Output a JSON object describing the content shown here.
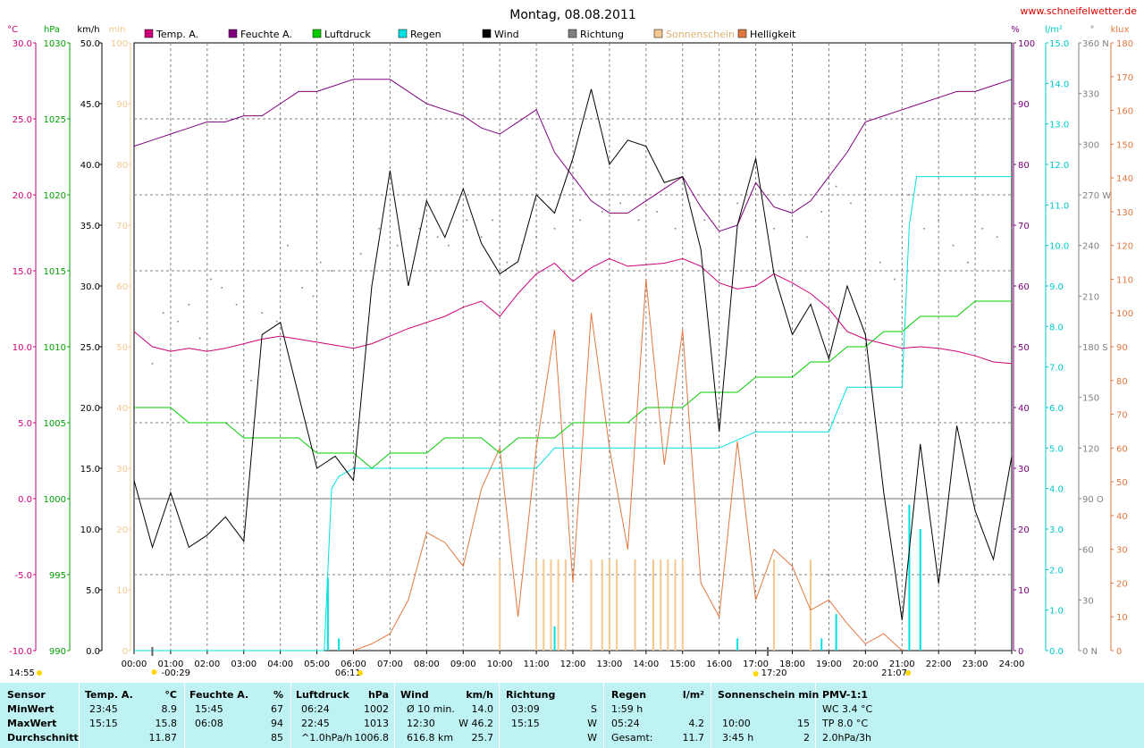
{
  "title": "Montag, 08.08.2011",
  "site": "www.schneifelwetter.de",
  "legend": [
    {
      "label": "Temp. A.",
      "color": "#cc0077"
    },
    {
      "label": "Feuchte A.",
      "color": "#800080"
    },
    {
      "label": "Luftdruck",
      "color": "#00cc00"
    },
    {
      "label": "Regen",
      "color": "#00e0e0"
    },
    {
      "label": "Wind",
      "color": "#000000"
    },
    {
      "label": "Richtung",
      "color": "#808080"
    },
    {
      "label": "Sonnenschein",
      "color": "#f5c890"
    },
    {
      "label": "Helligkeit",
      "color": "#e07840"
    }
  ],
  "axes": {
    "temp": {
      "unit": "°C",
      "color": "#cc0077",
      "ticks": [
        "30.0",
        "25.0",
        "20.0",
        "15.0",
        "10.0",
        "5.0",
        "0.0",
        "-5.0",
        "-10.0"
      ]
    },
    "pressure": {
      "unit": "hPa",
      "color": "#00a000",
      "ticks": [
        "1030",
        "1025",
        "1020",
        "1015",
        "1010",
        "1005",
        "1000",
        "995",
        "990"
      ]
    },
    "wind": {
      "unit": "km/h",
      "color": "#000000",
      "ticks": [
        "50.0",
        "45.0",
        "40.0",
        "35.0",
        "30.0",
        "25.0",
        "20.0",
        "15.0",
        "10.0",
        "5.0",
        "0.0"
      ]
    },
    "sun": {
      "unit": "min",
      "color": "#f5c890",
      "ticks": [
        "100",
        "90",
        "80",
        "70",
        "60",
        "50",
        "40",
        "30",
        "20",
        "10",
        "0"
      ]
    },
    "humidity": {
      "unit": "%",
      "color": "#800080",
      "ticks": [
        "100",
        "90",
        "80",
        "70",
        "60",
        "50",
        "40",
        "30",
        "20",
        "10",
        "0"
      ]
    },
    "rain": {
      "unit": "l/m²",
      "color": "#00c8c8",
      "ticks": [
        "15.0",
        "14.0",
        "13.0",
        "12.0",
        "11.0",
        "10.0",
        "9.0",
        "8.0",
        "7.0",
        "6.0",
        "5.0",
        "4.0",
        "3.0",
        "2.0",
        "1.0",
        "0.0"
      ]
    },
    "direction": {
      "unit": "°",
      "color": "#808080",
      "ticks": [
        "360 N",
        "330",
        "300",
        "270 W",
        "240",
        "210",
        "180 S",
        "150",
        "120",
        "90  O",
        "60",
        "30",
        "0    N"
      ]
    },
    "brightness": {
      "unit": "klux",
      "color": "#e07840",
      "ticks": [
        "180",
        "170",
        "160",
        "150",
        "140",
        "130",
        "120",
        "110",
        "100",
        "90",
        "80",
        "70",
        "60",
        "50",
        "40",
        "30",
        "20",
        "10",
        "0"
      ]
    }
  },
  "x_ticks": [
    "00:00",
    "01:00",
    "02:00",
    "03:00",
    "04:00",
    "05:00",
    "06:00",
    "07:00",
    "08:00",
    "09:00",
    "10:00",
    "11:00",
    "12:00",
    "13:00",
    "14:00",
    "15:00",
    "16:00",
    "17:00",
    "18:00",
    "19:00",
    "20:00",
    "21:00",
    "22:00",
    "23:00",
    "24:00"
  ],
  "sun_marks": {
    "left": "14:55",
    "rise": "06:11",
    "set": "21:07",
    "moonrise": "-00:29",
    "moonset": "17:20"
  },
  "chart_data": {
    "type": "line",
    "x_unit": "hours",
    "series": [
      {
        "name": "Temp. A.",
        "axis": "temp",
        "x": [
          0,
          0.5,
          1,
          1.5,
          2,
          2.5,
          3,
          3.5,
          4,
          4.5,
          5,
          5.5,
          6,
          6.5,
          7,
          7.5,
          8,
          8.5,
          9,
          9.5,
          10,
          10.5,
          11,
          11.5,
          12,
          12.5,
          13,
          13.5,
          14,
          14.5,
          15,
          15.5,
          16,
          16.5,
          17,
          17.5,
          18,
          18.5,
          19,
          19.5,
          20,
          20.5,
          21,
          21.5,
          22,
          22.5,
          23,
          23.5,
          24
        ],
        "values": [
          11.0,
          10.0,
          9.7,
          9.9,
          9.7,
          9.9,
          10.2,
          10.5,
          10.7,
          10.5,
          10.3,
          10.1,
          9.9,
          10.2,
          10.7,
          11.2,
          11.6,
          12.0,
          12.6,
          13.0,
          12.0,
          13.5,
          14.8,
          15.5,
          14.3,
          15.2,
          15.8,
          15.3,
          15.4,
          15.5,
          15.8,
          15.3,
          14.2,
          13.8,
          14.0,
          14.8,
          14.2,
          13.5,
          12.5,
          11.0,
          10.5,
          10.2,
          9.9,
          10.0,
          9.9,
          9.7,
          9.4,
          9.0,
          8.9
        ]
      },
      {
        "name": "Feuchte A.",
        "axis": "humidity",
        "x": [
          0,
          0.5,
          1,
          1.5,
          2,
          2.5,
          3,
          3.5,
          4,
          4.5,
          5,
          5.5,
          6,
          6.5,
          7,
          7.5,
          8,
          8.5,
          9,
          9.5,
          10,
          10.5,
          11,
          11.5,
          12,
          12.5,
          13,
          13.5,
          14,
          14.5,
          15,
          15.5,
          16,
          16.5,
          17,
          17.5,
          18,
          18.5,
          19,
          19.5,
          20,
          20.5,
          21,
          21.5,
          22,
          22.5,
          23,
          23.5,
          24
        ],
        "values": [
          83,
          84,
          85,
          86,
          87,
          87,
          88,
          88,
          90,
          92,
          92,
          93,
          94,
          94,
          94,
          92,
          90,
          89,
          88,
          86,
          85,
          87,
          89,
          82,
          78,
          74,
          72,
          72,
          74,
          76,
          78,
          73,
          69,
          70,
          77,
          73,
          72,
          74,
          78,
          82,
          87,
          88,
          89,
          90,
          91,
          92,
          92,
          93,
          94
        ]
      },
      {
        "name": "Luftdruck",
        "axis": "pressure",
        "x": [
          0,
          0.5,
          1,
          1.5,
          2,
          2.5,
          3,
          3.5,
          4,
          4.5,
          5,
          5.5,
          6,
          6.5,
          7,
          7.5,
          8,
          8.5,
          9,
          9.5,
          10,
          10.5,
          11,
          11.5,
          12,
          12.5,
          13,
          13.5,
          14,
          14.5,
          15,
          15.5,
          16,
          16.5,
          17,
          17.5,
          18,
          18.5,
          19,
          19.5,
          20,
          20.5,
          21,
          21.5,
          22,
          22.5,
          23,
          23.5,
          24
        ],
        "values": [
          1006,
          1006,
          1006,
          1005,
          1005,
          1005,
          1004,
          1004,
          1004,
          1004,
          1003,
          1003,
          1003,
          1002,
          1003,
          1003,
          1003,
          1004,
          1004,
          1004,
          1003,
          1004,
          1004,
          1004,
          1005,
          1005,
          1005,
          1005,
          1006,
          1006,
          1006,
          1007,
          1007,
          1007,
          1008,
          1008,
          1008,
          1009,
          1009,
          1010,
          1010,
          1011,
          1011,
          1012,
          1012,
          1012,
          1013,
          1013,
          1013
        ]
      },
      {
        "name": "Wind",
        "axis": "wind",
        "x": [
          0,
          0.5,
          1,
          1.5,
          2,
          2.5,
          3,
          3.5,
          4,
          4.5,
          5,
          5.5,
          6,
          6.5,
          7,
          7.5,
          8,
          8.5,
          9,
          9.5,
          10,
          10.5,
          11,
          11.5,
          12,
          12.5,
          13,
          13.5,
          14,
          14.5,
          15,
          15.5,
          16,
          16.5,
          17,
          17.5,
          18,
          18.5,
          19,
          19.5,
          20,
          20.5,
          21,
          21.5,
          22,
          22.5,
          23,
          23.5,
          24
        ],
        "values": [
          14.0,
          8.5,
          13.0,
          8.5,
          9.5,
          11.0,
          9.0,
          26.0,
          27.0,
          21.0,
          15.0,
          16.0,
          14.0,
          30.0,
          39.5,
          30.0,
          37.0,
          34.0,
          38.0,
          33.5,
          31.0,
          32.0,
          37.5,
          36.0,
          40.5,
          46.2,
          40.0,
          42.0,
          41.5,
          38.5,
          39.0,
          33.0,
          18.0,
          35.0,
          40.5,
          31.0,
          26.0,
          28.5,
          24.0,
          30.0,
          26.0,
          13.0,
          2.5,
          17.0,
          5.5,
          18.5,
          11.5,
          7.5,
          16.0
        ]
      },
      {
        "name": "Regen",
        "axis": "rain",
        "x": [
          0,
          5.2,
          5.4,
          5.6,
          6,
          7,
          8,
          9,
          10,
          10.5,
          11,
          11.5,
          12,
          13,
          14,
          15,
          16,
          17,
          18,
          19,
          19.5,
          20,
          20.5,
          21,
          21.2,
          21.4,
          21.6,
          22,
          23,
          24
        ],
        "values": [
          0,
          0,
          4.0,
          4.3,
          4.5,
          4.5,
          4.5,
          4.5,
          4.5,
          4.5,
          4.5,
          5.0,
          5.0,
          5.0,
          5.0,
          5.0,
          5.0,
          5.4,
          5.4,
          5.4,
          6.5,
          6.5,
          6.5,
          6.5,
          10.5,
          11.7,
          11.7,
          11.7,
          11.7,
          11.7
        ]
      },
      {
        "name": "Helligkeit",
        "axis": "brightness",
        "x": [
          6,
          6.5,
          7,
          7.5,
          8,
          8.5,
          9,
          9.5,
          10,
          10.5,
          11,
          11.5,
          12,
          12.5,
          13,
          13.5,
          14,
          14.5,
          15,
          15.5,
          16,
          16.5,
          17,
          17.5,
          18,
          18.5,
          19,
          19.5,
          20,
          20.5,
          21
        ],
        "values": [
          0,
          2,
          5,
          15,
          35,
          32,
          25,
          48,
          60,
          10,
          60,
          95,
          20,
          100,
          60,
          30,
          110,
          55,
          95,
          20,
          10,
          62,
          15,
          30,
          25,
          12,
          15,
          8,
          2,
          5,
          0
        ]
      },
      {
        "name": "Sonnenschein",
        "axis": "sun",
        "x": [
          10,
          11,
          11.2,
          11.4,
          11.6,
          11.8,
          12.5,
          12.8,
          13,
          13.2,
          13.7,
          14.2,
          14.4,
          14.6,
          14.8,
          15,
          17.5,
          18.5
        ],
        "values": [
          15,
          15,
          15,
          15,
          15,
          15,
          15,
          15,
          15,
          15,
          15,
          15,
          15,
          15,
          15,
          15,
          15,
          15
        ]
      }
    ]
  },
  "table": {
    "headers": [
      "Sensor",
      "Temp. A.",
      "°C",
      "Feuchte A.",
      "%",
      "Luftdruck",
      "hPa",
      "Wind",
      "km/h",
      "Richtung",
      "",
      "Regen",
      "l/m²",
      "Sonnenschein min",
      "",
      "PMV-1:1"
    ],
    "rows": [
      {
        "label": "MinWert",
        "temp_time": "23:45",
        "temp": "8.9",
        "hum_time": "15:45",
        "hum": "67",
        "press_time": "06:24",
        "press": "1002",
        "wind_label": "Ø 10 min.",
        "wind": "14.0",
        "dir_time": "03:09",
        "dir": "S",
        "rain_time": "1:59 h",
        "rain": "",
        "sun_time": "",
        "sun": "",
        "pmv": "WC 3.4 °C"
      },
      {
        "label": "MaxWert",
        "temp_time": "15:15",
        "temp": "15.8",
        "hum_time": "06:08",
        "hum": "94",
        "press_time": "22:45",
        "press": "1013",
        "wind_label": "12:30",
        "wind": "W 46.2",
        "dir_time": "15:15",
        "dir": "W",
        "rain_time": "05:24",
        "rain": "4.2",
        "sun_time": "10:00",
        "sun": "15",
        "pmv": "TP 8.0 °C"
      },
      {
        "label": "Durchschnitt",
        "temp_time": "",
        "temp": "11.87",
        "hum_time": "",
        "hum": "85",
        "press_time": "^1.0hPa/h",
        "press": "1006.8",
        "wind_label": "616.8 km",
        "wind": "25.7",
        "dir_time": "",
        "dir": "W",
        "rain_time": "Gesamt:",
        "rain": "11.7",
        "sun_time": "3:45 h",
        "sun": "2",
        "pmv": "2.0hPa/3h"
      }
    ]
  }
}
